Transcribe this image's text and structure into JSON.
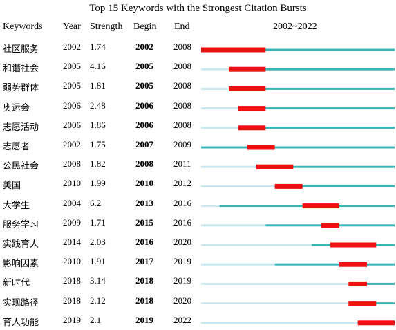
{
  "title": "Top 15 Keywords with the Strongest Citation Bursts",
  "headers": {
    "keywords": "Keywords",
    "year": "Year",
    "strength": "Strength",
    "begin": "Begin",
    "end": "End",
    "range": "2002~2022"
  },
  "colors": {
    "burst": "#ee1111",
    "active": "#3bb6b6",
    "inactive": "#c9e7ec"
  },
  "chart_data": {
    "type": "table",
    "subtype": "citation-burst",
    "range_start": 2002,
    "range_end": 2022,
    "rows": [
      {
        "keyword": "社区服务",
        "year": "2002",
        "strength": "1.74",
        "begin": "2002",
        "end": "2008"
      },
      {
        "keyword": "和谐社会",
        "year": "2005",
        "strength": "4.16",
        "begin": "2005",
        "end": "2008"
      },
      {
        "keyword": "弱势群体",
        "year": "2005",
        "strength": "1.81",
        "begin": "2005",
        "end": "2008"
      },
      {
        "keyword": "奥运会",
        "year": "2006",
        "strength": "2.48",
        "begin": "2006",
        "end": "2008"
      },
      {
        "keyword": "志愿活动",
        "year": "2006",
        "strength": "1.86",
        "begin": "2006",
        "end": "2008"
      },
      {
        "keyword": "志愿者",
        "year": "2002",
        "strength": "1.75",
        "begin": "2007",
        "end": "2009"
      },
      {
        "keyword": "公民社会",
        "year": "2008",
        "strength": "1.82",
        "begin": "2008",
        "end": "2011"
      },
      {
        "keyword": "美国",
        "year": "2010",
        "strength": "1.99",
        "begin": "2010",
        "end": "2012"
      },
      {
        "keyword": "大学生",
        "year": "2004",
        "strength": "6.2",
        "begin": "2013",
        "end": "2016"
      },
      {
        "keyword": "服务学习",
        "year": "2009",
        "strength": "1.71",
        "begin": "2015",
        "end": "2016"
      },
      {
        "keyword": "实践育人",
        "year": "2014",
        "strength": "2.03",
        "begin": "2016",
        "end": "2020"
      },
      {
        "keyword": "影响因素",
        "year": "2010",
        "strength": "1.91",
        "begin": "2017",
        "end": "2019"
      },
      {
        "keyword": "新时代",
        "year": "2018",
        "strength": "3.14",
        "begin": "2018",
        "end": "2019"
      },
      {
        "keyword": "实现路径",
        "year": "2018",
        "strength": "2.12",
        "begin": "2018",
        "end": "2020"
      },
      {
        "keyword": "育人功能",
        "year": "2019",
        "strength": "2.1",
        "begin": "2019",
        "end": "2022"
      }
    ]
  }
}
